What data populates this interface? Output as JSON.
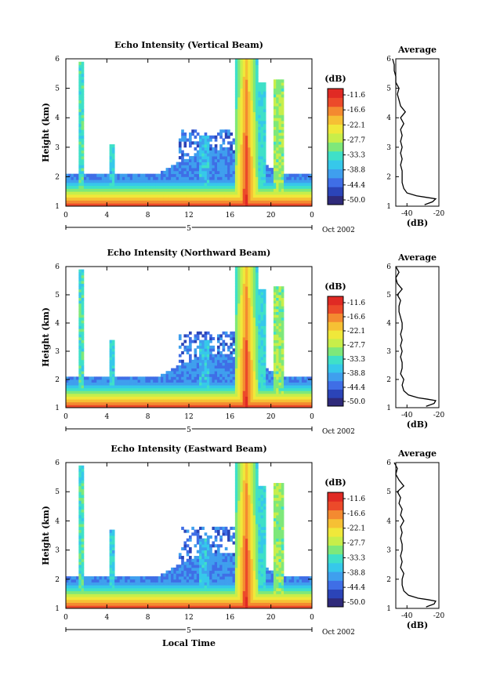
{
  "chart_data": [
    {
      "type": "heatmap",
      "title": "Echo Intensity (Vertical Beam)",
      "ylabel": "Height (km)",
      "xlabel": "",
      "x_ticks": [
        "0",
        "4",
        "8",
        "12",
        "16",
        "20",
        "0"
      ],
      "y_ticks": [
        "1",
        "2",
        "3",
        "4",
        "5",
        "6"
      ],
      "date_label": "5",
      "date_suffix": "Oct 2002",
      "colorbar_unit": "(dB)",
      "colorbar_ticks": [
        "-11.6",
        "-16.6",
        "-22.1",
        "-27.7",
        "-33.3",
        "-38.8",
        "-44.4",
        "-50.0"
      ],
      "xlim_hours": [
        0,
        24
      ],
      "ylim_km": [
        1,
        6
      ],
      "average_profile": {
        "title": "Average",
        "xlabel": "(dB)",
        "x_ticks": [
          "-40",
          "-20"
        ],
        "y_ticks": [
          "1",
          "2",
          "3",
          "4",
          "5",
          "6"
        ],
        "height_km": [
          1.05,
          1.15,
          1.25,
          1.3,
          1.35,
          1.45,
          1.6,
          1.8,
          2.0,
          2.2,
          2.4,
          2.6,
          2.8,
          3.0,
          3.2,
          3.4,
          3.6,
          3.8,
          4.0,
          4.2,
          4.4,
          4.6,
          4.8,
          5.0,
          5.2,
          5.4,
          5.6,
          5.8,
          6.0
        ],
        "db": [
          -29,
          -24,
          -22,
          -28,
          -34,
          -40,
          -42,
          -43,
          -43,
          -43,
          -44,
          -43,
          -44,
          -43,
          -44,
          -43,
          -44,
          -42,
          -44,
          -41,
          -44,
          -45,
          -46,
          -45,
          -47,
          -47,
          -48,
          -48,
          -49
        ]
      }
    },
    {
      "type": "heatmap",
      "title": "Echo Intensity (Northward Beam)",
      "ylabel": "Height (km)",
      "xlabel": "",
      "x_ticks": [
        "0",
        "4",
        "8",
        "12",
        "16",
        "20",
        "0"
      ],
      "y_ticks": [
        "1",
        "2",
        "3",
        "4",
        "5",
        "6"
      ],
      "date_label": "5",
      "date_suffix": "Oct 2002",
      "colorbar_unit": "(dB)",
      "colorbar_ticks": [
        "-11.6",
        "-16.6",
        "-22.1",
        "-27.7",
        "-33.3",
        "-38.8",
        "-44.4",
        "-50.0"
      ],
      "xlim_hours": [
        0,
        24
      ],
      "ylim_km": [
        1,
        6
      ],
      "average_profile": {
        "title": "Average",
        "xlabel": "(dB)",
        "x_ticks": [
          "-40",
          "-20"
        ],
        "y_ticks": [
          "1",
          "2",
          "3",
          "4",
          "5",
          "6"
        ],
        "height_km": [
          1.05,
          1.15,
          1.25,
          1.3,
          1.35,
          1.45,
          1.6,
          1.8,
          2.0,
          2.2,
          2.4,
          2.6,
          2.8,
          3.0,
          3.2,
          3.4,
          3.6,
          3.8,
          4.0,
          4.2,
          4.4,
          4.6,
          4.8,
          5.0,
          5.2,
          5.4,
          5.6,
          5.8,
          6.0
        ],
        "db": [
          -28,
          -23,
          -22,
          -27,
          -33,
          -39,
          -42,
          -43,
          -42,
          -44,
          -43,
          -43,
          -44,
          -43,
          -44,
          -43,
          -44,
          -43,
          -43,
          -44,
          -45,
          -45,
          -44,
          -46,
          -43,
          -46,
          -47,
          -45,
          -47
        ]
      }
    },
    {
      "type": "heatmap",
      "title": "Echo Intensity (Eastward Beam)",
      "ylabel": "Height (km)",
      "xlabel": "Local Time",
      "x_ticks": [
        "0",
        "4",
        "8",
        "12",
        "16",
        "20",
        "0"
      ],
      "y_ticks": [
        "1",
        "2",
        "3",
        "4",
        "5",
        "6"
      ],
      "date_label": "5",
      "date_suffix": "Oct 2002",
      "colorbar_unit": "(dB)",
      "colorbar_ticks": [
        "-11.6",
        "-16.6",
        "-22.1",
        "-27.7",
        "-33.3",
        "-38.8",
        "-44.4",
        "-50.0"
      ],
      "xlim_hours": [
        0,
        24
      ],
      "ylim_km": [
        1,
        6
      ],
      "average_profile": {
        "title": "Average",
        "xlabel": "(dB)",
        "x_ticks": [
          "-40",
          "-20"
        ],
        "y_ticks": [
          "1",
          "2",
          "3",
          "4",
          "5",
          "6"
        ],
        "height_km": [
          1.05,
          1.15,
          1.25,
          1.3,
          1.35,
          1.45,
          1.6,
          1.8,
          2.0,
          2.2,
          2.4,
          2.6,
          2.8,
          3.0,
          3.2,
          3.4,
          3.6,
          3.8,
          4.0,
          4.2,
          4.4,
          4.6,
          4.8,
          5.0,
          5.2,
          5.4,
          5.6,
          5.8,
          6.0
        ],
        "db": [
          -28,
          -23,
          -22,
          -27,
          -33,
          -39,
          -42,
          -43,
          -43,
          -42,
          -44,
          -43,
          -44,
          -43,
          -43,
          -44,
          -43,
          -44,
          -42,
          -44,
          -43,
          -45,
          -44,
          -46,
          -42,
          -45,
          -47,
          -46,
          -48
        ]
      }
    }
  ],
  "colors": {
    "colormap": [
      "#2f2a7a",
      "#2b44b8",
      "#3f6ee6",
      "#3f9fee",
      "#36c8ea",
      "#3fe0c8",
      "#7ee87a",
      "#c8ee4a",
      "#f0e83a",
      "#f6c034",
      "#f48a30",
      "#ec4a2a",
      "#e02a24"
    ]
  }
}
